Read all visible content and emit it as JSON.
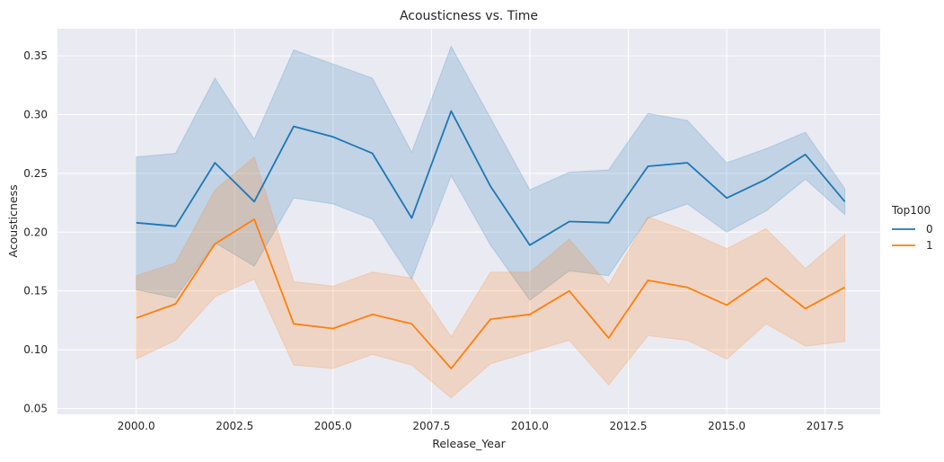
{
  "chart_data": {
    "type": "line",
    "title": "Acousticness vs. Time",
    "xlabel": "Release_Year",
    "ylabel": "Acousticness",
    "xlim": [
      1998.0,
      2018.9
    ],
    "ylim": [
      0.045,
      0.373
    ],
    "x_ticks": [
      2000.0,
      2002.5,
      2005.0,
      2007.5,
      2010.0,
      2012.5,
      2015.0,
      2017.5
    ],
    "x_tick_labels": [
      "2000.0",
      "2002.5",
      "2005.0",
      "2007.5",
      "2010.0",
      "2012.5",
      "2015.0",
      "2017.5"
    ],
    "y_ticks": [
      0.05,
      0.1,
      0.15,
      0.2,
      0.25,
      0.3,
      0.35
    ],
    "y_tick_labels": [
      "0.05",
      "0.10",
      "0.15",
      "0.20",
      "0.25",
      "0.30",
      "0.35"
    ],
    "grid": true,
    "background": "#eaeaf2",
    "legend": {
      "title": "Top100",
      "placement": "right"
    },
    "x": [
      2000,
      2001,
      2002,
      2003,
      2004,
      2005,
      2006,
      2007,
      2008,
      2009,
      2010,
      2011,
      2012,
      2013,
      2014,
      2015,
      2016,
      2017,
      2018
    ],
    "series": [
      {
        "name": "0",
        "color": "#1f77b4",
        "values": [
          0.208,
          0.205,
          0.259,
          0.226,
          0.29,
          0.281,
          0.267,
          0.212,
          0.303,
          0.239,
          0.189,
          0.209,
          0.208,
          0.256,
          0.259,
          0.229,
          0.245,
          0.266,
          0.226
        ],
        "ci_lower": [
          0.151,
          0.144,
          0.191,
          0.171,
          0.229,
          0.224,
          0.211,
          0.16,
          0.248,
          0.189,
          0.142,
          0.167,
          0.163,
          0.212,
          0.224,
          0.2,
          0.218,
          0.245,
          0.215
        ],
        "ci_upper": [
          0.264,
          0.267,
          0.331,
          0.279,
          0.355,
          0.343,
          0.331,
          0.268,
          0.358,
          0.297,
          0.236,
          0.251,
          0.253,
          0.301,
          0.295,
          0.259,
          0.271,
          0.285,
          0.237
        ]
      },
      {
        "name": "1",
        "color": "#ff7f0e",
        "values": [
          0.127,
          0.139,
          0.19,
          0.211,
          0.122,
          0.118,
          0.13,
          0.122,
          0.084,
          0.126,
          0.13,
          0.15,
          0.11,
          0.159,
          0.153,
          0.138,
          0.161,
          0.135,
          0.153
        ],
        "ci_lower": [
          0.092,
          0.108,
          0.145,
          0.16,
          0.087,
          0.084,
          0.096,
          0.087,
          0.059,
          0.088,
          0.098,
          0.108,
          0.07,
          0.112,
          0.108,
          0.092,
          0.122,
          0.103,
          0.107
        ],
        "ci_upper": [
          0.163,
          0.174,
          0.236,
          0.264,
          0.158,
          0.154,
          0.166,
          0.161,
          0.111,
          0.166,
          0.166,
          0.194,
          0.155,
          0.213,
          0.201,
          0.186,
          0.203,
          0.169,
          0.198
        ]
      }
    ]
  }
}
